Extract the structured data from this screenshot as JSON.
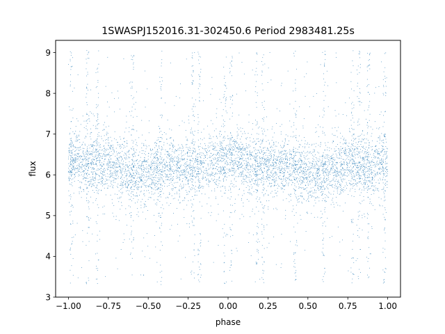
{
  "chart_data": {
    "type": "scatter",
    "title": "1SWASPJ152016.31-302450.6 Period 2983481.25s",
    "xlabel": "phase",
    "ylabel": "flux",
    "xlim": [
      -1.08,
      1.08
    ],
    "ylim": [
      3.0,
      9.3
    ],
    "xticks": [
      -1.0,
      -0.75,
      -0.5,
      -0.25,
      0.0,
      0.25,
      0.5,
      0.75,
      1.0
    ],
    "xtick_labels": [
      "−1.00",
      "−0.75",
      "−0.50",
      "−0.25",
      "0.00",
      "0.25",
      "0.50",
      "0.75",
      "1.00"
    ],
    "yticks": [
      3,
      4,
      5,
      6,
      7,
      8,
      9
    ],
    "ytick_labels": [
      "3",
      "4",
      "5",
      "6",
      "7",
      "8",
      "9"
    ],
    "grid": false,
    "legend": "none",
    "marker_color": "#1f77b4",
    "series": [
      {
        "phase_range": [
          -1.0,
          1.0
        ],
        "flux_range": [
          3.3,
          9.05
        ],
        "flux_core": [
          5.5,
          7.0
        ],
        "flux_median": 6.2,
        "symmetry": "mirrored about phase 0",
        "points": [
          [
            -1.0,
            6.3
          ],
          [
            -0.95,
            6.4
          ],
          [
            -0.9,
            6.2
          ],
          [
            -0.85,
            6.3
          ],
          [
            -0.8,
            6.2
          ],
          [
            -0.75,
            6.3
          ],
          [
            -0.7,
            6.2
          ],
          [
            -0.65,
            6.1
          ],
          [
            -0.6,
            6.0
          ],
          [
            -0.55,
            6.0
          ],
          [
            -0.5,
            6.1
          ],
          [
            -0.45,
            6.1
          ],
          [
            -0.4,
            6.2
          ],
          [
            -0.35,
            6.2
          ],
          [
            -0.3,
            6.2
          ],
          [
            -0.25,
            6.2
          ],
          [
            -0.2,
            6.2
          ],
          [
            -0.15,
            6.2
          ],
          [
            -0.1,
            6.3
          ],
          [
            -0.05,
            6.4
          ],
          [
            0.0,
            6.4
          ],
          [
            0.05,
            6.4
          ],
          [
            0.1,
            6.3
          ],
          [
            0.15,
            6.2
          ],
          [
            0.2,
            6.2
          ],
          [
            0.25,
            6.2
          ],
          [
            0.3,
            6.2
          ],
          [
            0.35,
            6.2
          ],
          [
            0.4,
            6.2
          ],
          [
            0.45,
            6.1
          ],
          [
            0.5,
            6.1
          ],
          [
            0.55,
            6.0
          ],
          [
            0.6,
            6.0
          ],
          [
            0.65,
            6.1
          ],
          [
            0.7,
            6.2
          ],
          [
            0.75,
            6.3
          ],
          [
            0.8,
            6.2
          ],
          [
            0.85,
            6.3
          ],
          [
            0.9,
            6.2
          ],
          [
            0.95,
            6.4
          ],
          [
            1.0,
            6.3
          ]
        ],
        "spike_phases": [
          -0.98,
          -0.88,
          -0.82,
          -0.6,
          -0.42,
          -0.22,
          -0.18,
          -0.02,
          0.02,
          0.18,
          0.22,
          0.42,
          0.6,
          0.78,
          0.82,
          0.88,
          0.98
        ]
      }
    ]
  }
}
